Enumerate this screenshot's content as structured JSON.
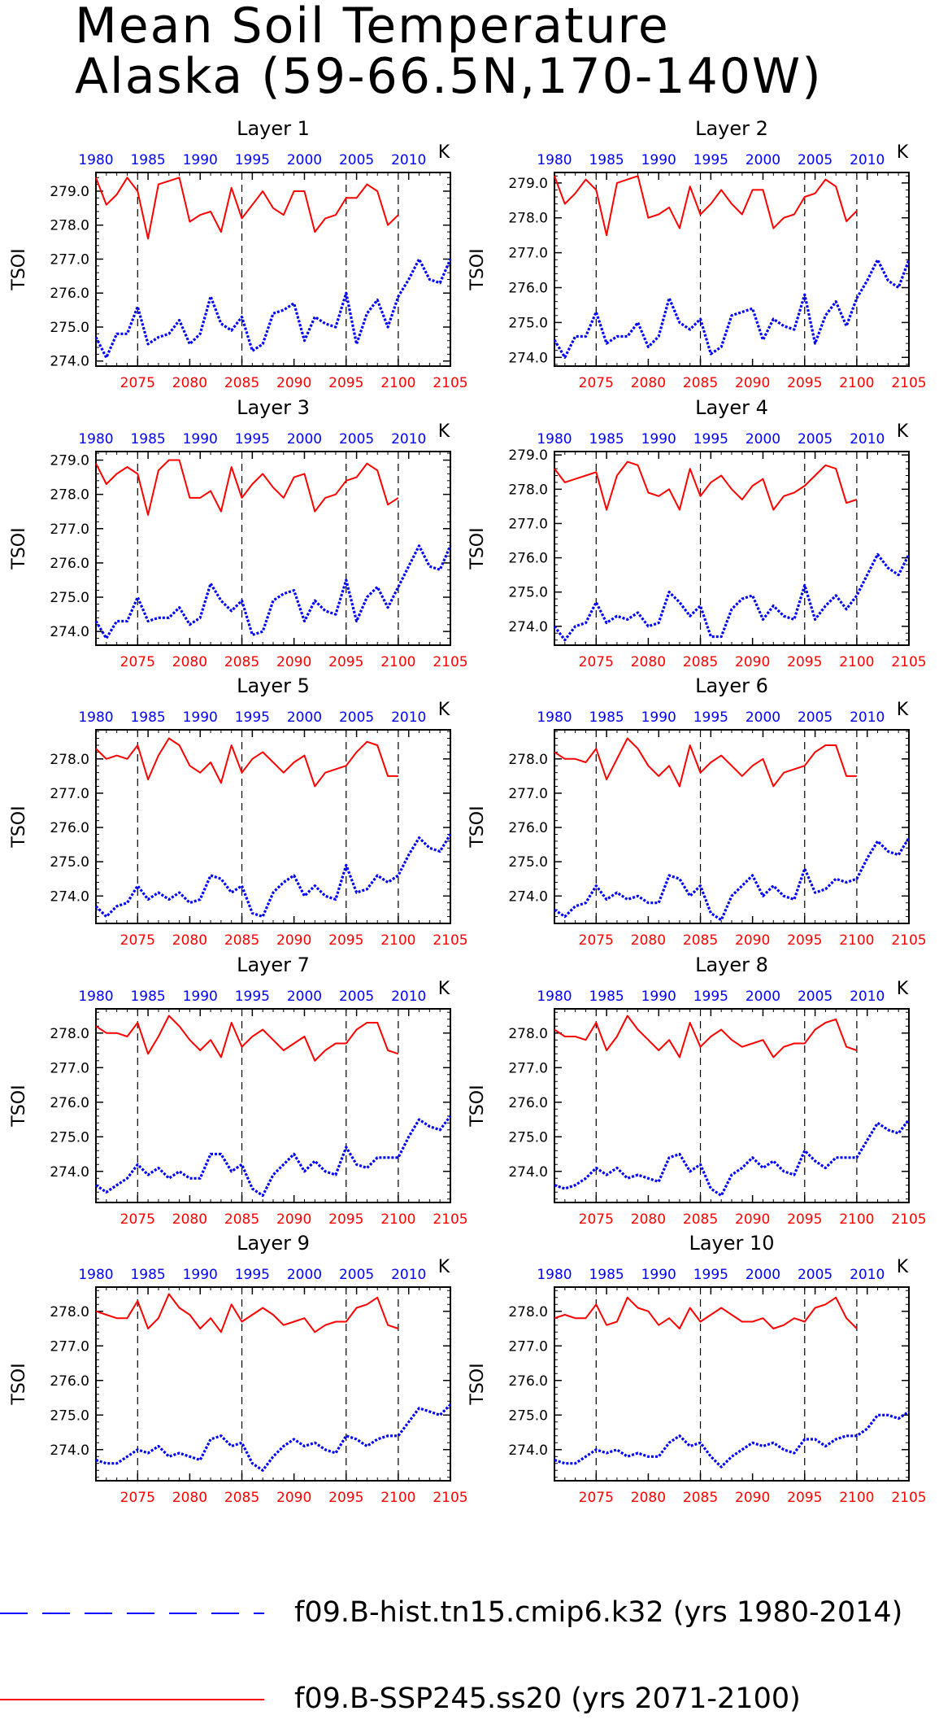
{
  "title": {
    "line1": "Mean Soil Temperature",
    "line2": "Alaska (59-66.5N,170-140W)"
  },
  "legend": [
    {
      "label": "f09.B-hist.tn15.cmip6.k32 (yrs 1980-2014)",
      "color": "#0000ff",
      "style": "long-dashed"
    },
    {
      "label": "f09.B-SSP245.ss20 (yrs 2071-2100)",
      "color": "#ff0000",
      "style": "solid"
    }
  ],
  "colors": {
    "hist": "#0000ff",
    "future": "#ff0000",
    "axis": "#000000"
  },
  "chart_data": {
    "type": "line",
    "ylabel": "TSOI",
    "units": "K",
    "bottom_x": {
      "range": [
        2071,
        2105
      ],
      "ticks": [
        2075,
        2080,
        2085,
        2090,
        2095,
        2100,
        2105
      ],
      "color": "#ff0000"
    },
    "top_x": {
      "range": [
        1980,
        2014
      ],
      "ticks": [
        1980,
        1985,
        1990,
        1995,
        2000,
        2005,
        2010
      ],
      "color": "#0000ff"
    },
    "y_ticks": [
      274.0,
      275.0,
      276.0,
      277.0,
      278.0,
      279.0
    ],
    "vertical_dashed_lines_at": [
      2075,
      2085,
      2095,
      2100
    ],
    "future_x": [
      2071,
      2072,
      2073,
      2074,
      2075,
      2076,
      2077,
      2078,
      2079,
      2080,
      2081,
      2082,
      2083,
      2084,
      2085,
      2086,
      2087,
      2088,
      2089,
      2090,
      2091,
      2092,
      2093,
      2094,
      2095,
      2096,
      2097,
      2098,
      2099,
      2100
    ],
    "hist_x": [
      1980,
      1981,
      1982,
      1983,
      1984,
      1985,
      1986,
      1987,
      1988,
      1989,
      1990,
      1991,
      1992,
      1993,
      1994,
      1995,
      1996,
      1997,
      1998,
      1999,
      2000,
      2001,
      2002,
      2003,
      2004,
      2005,
      2006,
      2007,
      2008,
      2009,
      2010,
      2011,
      2012,
      2013,
      2014
    ],
    "panels": [
      {
        "title": "Layer 1",
        "ylim": [
          273.85,
          279.55
        ],
        "future": [
          279.4,
          278.6,
          278.9,
          279.4,
          279.0,
          277.6,
          279.2,
          279.3,
          279.4,
          278.1,
          278.3,
          278.4,
          277.8,
          279.1,
          278.2,
          278.6,
          279.0,
          278.5,
          278.3,
          279.0,
          279.0,
          277.8,
          278.2,
          278.3,
          278.8,
          278.8,
          279.2,
          279.0,
          278.0,
          278.3
        ],
        "hist": [
          274.7,
          274.1,
          274.8,
          274.8,
          275.6,
          274.5,
          274.7,
          274.8,
          275.2,
          274.5,
          274.8,
          275.9,
          275.1,
          274.9,
          275.3,
          274.3,
          274.5,
          275.4,
          275.5,
          275.7,
          274.6,
          275.3,
          275.1,
          275.0,
          276.0,
          274.5,
          275.4,
          275.8,
          275.0,
          275.9,
          276.4,
          277.0,
          276.4,
          276.3,
          277.0
        ]
      },
      {
        "title": "Layer 2",
        "ylim": [
          273.75,
          279.3
        ],
        "future": [
          279.2,
          278.4,
          278.7,
          279.1,
          278.8,
          277.5,
          279.0,
          279.1,
          279.2,
          278.0,
          278.1,
          278.3,
          277.7,
          278.9,
          278.1,
          278.4,
          278.8,
          278.4,
          278.1,
          278.8,
          278.8,
          277.7,
          278.0,
          278.1,
          278.6,
          278.7,
          279.1,
          278.9,
          277.9,
          278.2
        ],
        "hist": [
          274.5,
          274.0,
          274.6,
          274.6,
          275.3,
          274.4,
          274.6,
          274.6,
          275.0,
          274.3,
          274.6,
          275.7,
          275.0,
          274.8,
          275.1,
          274.1,
          274.3,
          275.2,
          275.3,
          275.4,
          274.5,
          275.1,
          274.9,
          274.8,
          275.8,
          274.4,
          275.2,
          275.6,
          274.9,
          275.7,
          276.2,
          276.8,
          276.2,
          276.0,
          276.8
        ]
      },
      {
        "title": "Layer 3",
        "ylim": [
          273.6,
          279.25
        ],
        "future": [
          278.9,
          278.3,
          278.6,
          278.8,
          278.6,
          277.4,
          278.7,
          279.0,
          279.0,
          277.9,
          277.9,
          278.1,
          277.5,
          278.8,
          277.9,
          278.3,
          278.6,
          278.2,
          277.9,
          278.5,
          278.6,
          277.5,
          277.9,
          278.0,
          278.4,
          278.5,
          278.9,
          278.7,
          277.7,
          277.9
        ],
        "hist": [
          274.3,
          273.8,
          274.3,
          274.3,
          275.0,
          274.3,
          274.4,
          274.4,
          274.7,
          274.2,
          274.4,
          275.4,
          274.9,
          274.6,
          274.9,
          273.9,
          274.0,
          274.9,
          275.1,
          275.2,
          274.3,
          274.9,
          274.6,
          274.5,
          275.5,
          274.3,
          275.0,
          275.3,
          274.7,
          275.3,
          275.9,
          276.5,
          275.9,
          275.8,
          276.5
        ]
      },
      {
        "title": "Layer 4",
        "ylim": [
          273.45,
          279.1
        ],
        "future": [
          278.6,
          278.2,
          278.3,
          278.4,
          278.5,
          277.4,
          278.4,
          278.8,
          278.7,
          277.9,
          277.8,
          278.0,
          277.4,
          278.6,
          277.8,
          278.2,
          278.4,
          278.0,
          277.7,
          278.1,
          278.3,
          277.4,
          277.8,
          277.9,
          278.1,
          278.4,
          278.7,
          278.6,
          277.6,
          277.7
        ],
        "hist": [
          274.0,
          273.6,
          274.0,
          274.1,
          274.7,
          274.1,
          274.3,
          274.2,
          274.4,
          274.0,
          274.1,
          275.0,
          274.7,
          274.3,
          274.6,
          273.7,
          273.7,
          274.5,
          274.8,
          274.9,
          274.2,
          274.6,
          274.3,
          274.2,
          275.2,
          274.2,
          274.6,
          274.9,
          274.5,
          274.9,
          275.5,
          276.1,
          275.7,
          275.5,
          276.1
        ]
      },
      {
        "title": "Layer 5",
        "ylim": [
          273.2,
          278.85
        ],
        "future": [
          278.3,
          278.0,
          278.1,
          278.0,
          278.4,
          277.4,
          278.1,
          278.6,
          278.4,
          277.8,
          277.6,
          277.9,
          277.3,
          278.4,
          277.6,
          278.0,
          278.2,
          277.9,
          277.6,
          277.9,
          278.1,
          277.2,
          277.6,
          277.7,
          277.8,
          278.2,
          278.5,
          278.4,
          277.5,
          277.5
        ],
        "hist": [
          273.7,
          273.4,
          273.7,
          273.8,
          274.3,
          273.9,
          274.1,
          273.9,
          274.1,
          273.8,
          273.9,
          274.6,
          274.5,
          274.1,
          274.3,
          273.5,
          273.4,
          274.1,
          274.4,
          274.6,
          274.0,
          274.3,
          274.0,
          273.9,
          274.9,
          274.1,
          274.2,
          274.6,
          274.4,
          274.6,
          275.2,
          275.7,
          275.4,
          275.3,
          275.8
        ]
      },
      {
        "title": "Layer 6",
        "ylim": [
          273.2,
          278.85
        ],
        "future": [
          278.2,
          278.0,
          278.0,
          277.9,
          278.3,
          277.4,
          278.0,
          278.6,
          278.3,
          277.8,
          277.5,
          277.8,
          277.2,
          278.4,
          277.6,
          277.9,
          278.1,
          277.8,
          277.5,
          277.8,
          278.0,
          277.2,
          277.6,
          277.7,
          277.8,
          278.2,
          278.4,
          278.4,
          277.5,
          277.5
        ],
        "hist": [
          273.6,
          273.4,
          273.7,
          273.8,
          274.3,
          273.9,
          274.1,
          273.9,
          274.0,
          273.8,
          273.8,
          274.6,
          274.5,
          274.0,
          274.3,
          273.5,
          273.3,
          274.0,
          274.3,
          274.6,
          274.0,
          274.3,
          274.0,
          273.9,
          274.8,
          274.1,
          274.2,
          274.5,
          274.4,
          274.5,
          275.1,
          275.6,
          275.3,
          275.2,
          275.7
        ]
      },
      {
        "title": "Layer 7",
        "ylim": [
          273.1,
          278.7
        ],
        "future": [
          278.2,
          278.0,
          278.0,
          277.9,
          278.3,
          277.4,
          277.9,
          278.5,
          278.2,
          277.8,
          277.5,
          277.8,
          277.3,
          278.3,
          277.6,
          277.9,
          278.1,
          277.8,
          277.5,
          277.7,
          277.9,
          277.2,
          277.5,
          277.7,
          277.7,
          278.1,
          278.3,
          278.3,
          277.5,
          277.4
        ],
        "hist": [
          273.6,
          273.4,
          273.6,
          273.8,
          274.2,
          273.9,
          274.1,
          273.8,
          274.0,
          273.8,
          273.8,
          274.5,
          274.5,
          274.0,
          274.2,
          273.5,
          273.3,
          273.9,
          274.2,
          274.5,
          274.0,
          274.3,
          274.0,
          273.9,
          274.7,
          274.2,
          274.1,
          274.4,
          274.4,
          274.4,
          275.0,
          275.5,
          275.3,
          275.2,
          275.6
        ]
      },
      {
        "title": "Layer 8",
        "ylim": [
          273.1,
          278.7
        ],
        "future": [
          278.1,
          277.9,
          277.9,
          277.8,
          278.3,
          277.5,
          277.9,
          278.5,
          278.1,
          277.8,
          277.5,
          277.8,
          277.3,
          278.3,
          277.6,
          277.9,
          278.1,
          277.8,
          277.6,
          277.7,
          277.8,
          277.3,
          277.6,
          277.7,
          277.7,
          278.1,
          278.3,
          278.4,
          277.6,
          277.5
        ],
        "hist": [
          273.6,
          273.5,
          273.6,
          273.8,
          274.1,
          273.9,
          274.1,
          273.8,
          273.9,
          273.8,
          273.7,
          274.4,
          274.5,
          274.0,
          274.2,
          273.5,
          273.3,
          273.9,
          274.1,
          274.4,
          274.1,
          274.3,
          274.0,
          273.9,
          274.6,
          274.3,
          274.1,
          274.4,
          274.4,
          274.4,
          274.9,
          275.4,
          275.2,
          275.1,
          275.5
        ]
      },
      {
        "title": "Layer 9",
        "ylim": [
          273.1,
          278.7
        ],
        "future": [
          278.0,
          277.9,
          277.8,
          277.8,
          278.3,
          277.5,
          277.8,
          278.5,
          278.1,
          277.9,
          277.5,
          277.8,
          277.4,
          278.2,
          277.7,
          277.9,
          278.1,
          277.9,
          277.6,
          277.7,
          277.8,
          277.4,
          277.6,
          277.7,
          277.7,
          278.1,
          278.2,
          278.4,
          277.6,
          277.5
        ],
        "hist": [
          273.7,
          273.6,
          273.6,
          273.8,
          274.0,
          273.9,
          274.1,
          273.8,
          273.9,
          273.8,
          273.7,
          274.3,
          274.4,
          274.1,
          274.2,
          273.6,
          273.4,
          273.8,
          274.1,
          274.3,
          274.1,
          274.2,
          274.0,
          273.9,
          274.4,
          274.3,
          274.1,
          274.3,
          274.4,
          274.4,
          274.8,
          275.2,
          275.1,
          275.0,
          275.3
        ]
      },
      {
        "title": "Layer 10",
        "ylim": [
          273.1,
          278.7
        ],
        "future": [
          277.8,
          277.9,
          277.8,
          277.8,
          278.2,
          277.6,
          277.7,
          278.4,
          278.1,
          278.0,
          277.6,
          277.8,
          277.5,
          278.1,
          277.7,
          277.9,
          278.1,
          277.9,
          277.7,
          277.7,
          277.8,
          277.5,
          277.6,
          277.8,
          277.7,
          278.1,
          278.2,
          278.4,
          277.8,
          277.5
        ],
        "hist": [
          273.7,
          273.6,
          273.6,
          273.8,
          274.0,
          273.9,
          274.0,
          273.8,
          273.9,
          273.8,
          273.8,
          274.2,
          274.4,
          274.1,
          274.2,
          273.8,
          273.5,
          273.8,
          274.0,
          274.2,
          274.1,
          274.2,
          274.0,
          273.9,
          274.3,
          274.3,
          274.1,
          274.3,
          274.4,
          274.4,
          274.6,
          275.0,
          275.0,
          274.9,
          275.1
        ]
      }
    ]
  }
}
